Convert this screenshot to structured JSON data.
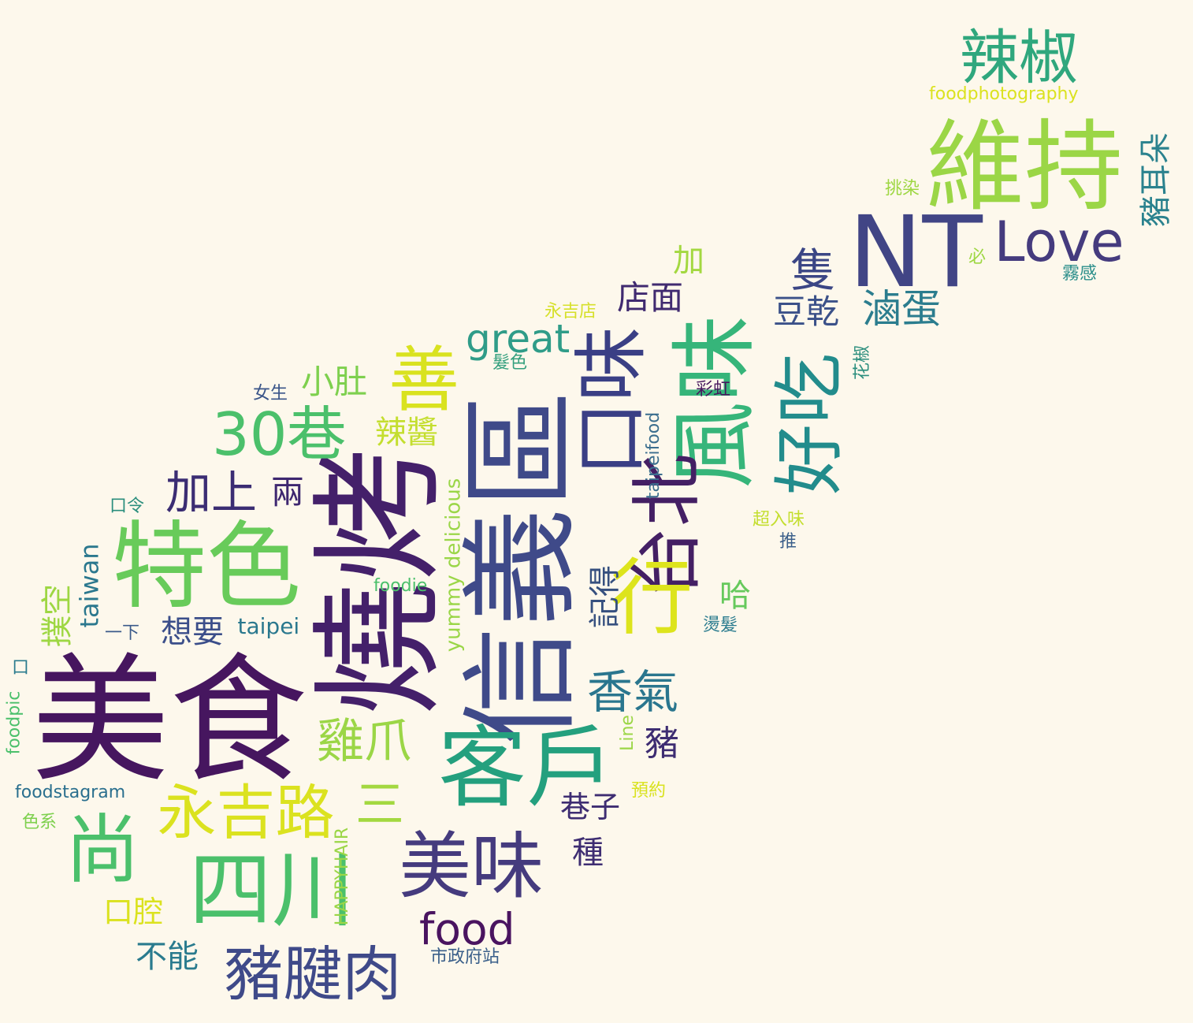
{
  "words": [
    {
      "text": "美食",
      "color": "#46165f",
      "orientation": "horizontal"
    },
    {
      "text": "燒烤",
      "color": "#44206a",
      "orientation": "vertical"
    },
    {
      "text": "信義區",
      "color": "#3f4a89",
      "orientation": "vertical"
    },
    {
      "text": "客戶",
      "color": "#24a07e",
      "orientation": "horizontal"
    },
    {
      "text": "維持",
      "color": "#9bd646",
      "orientation": "horizontal"
    },
    {
      "text": "NT",
      "color": "#414585",
      "orientation": "horizontal"
    },
    {
      "text": "特色",
      "color": "#68cb5a",
      "orientation": "horizontal"
    },
    {
      "text": "四川",
      "color": "#4bc06b",
      "orientation": "horizontal"
    },
    {
      "text": "風味",
      "color": "#36b57a",
      "orientation": "vertical"
    },
    {
      "text": "口味",
      "color": "#3a3f85",
      "orientation": "vertical"
    },
    {
      "text": "台北",
      "color": "#441f64",
      "orientation": "vertical"
    },
    {
      "text": "善",
      "color": "#d9e21f",
      "orientation": "horizontal"
    },
    {
      "text": "好吃",
      "color": "#228c8c",
      "orientation": "vertical"
    },
    {
      "text": "美味",
      "color": "#453b7e",
      "orientation": "horizontal"
    },
    {
      "text": "行",
      "color": "#dde41c",
      "orientation": "horizontal"
    },
    {
      "text": "尚",
      "color": "#4bc06b",
      "orientation": "horizontal"
    },
    {
      "text": "辣椒",
      "color": "#2fa77d",
      "orientation": "horizontal"
    },
    {
      "text": "Love",
      "color": "#453b7e",
      "orientation": "horizontal"
    },
    {
      "text": "豬腱肉",
      "color": "#3f4a89",
      "orientation": "horizontal"
    },
    {
      "text": "永吉路",
      "color": "#dbe21f",
      "orientation": "horizontal"
    },
    {
      "text": "30巷",
      "color": "#4bc06b",
      "orientation": "horizontal"
    },
    {
      "text": "food",
      "color": "#4a1460",
      "orientation": "horizontal"
    },
    {
      "text": "加上",
      "color": "#3b2d73",
      "orientation": "horizontal"
    },
    {
      "text": "香氣",
      "color": "#2a768e",
      "orientation": "horizontal"
    },
    {
      "text": "雞爪",
      "color": "#9bd646",
      "orientation": "horizontal"
    },
    {
      "text": "三",
      "color": "#a3d840",
      "orientation": "horizontal"
    },
    {
      "text": "豬耳朵",
      "color": "#2b828e",
      "orientation": "vertical"
    },
    {
      "text": "隻",
      "color": "#3b4685",
      "orientation": "horizontal"
    },
    {
      "text": "滷蛋",
      "color": "#2b7d8e",
      "orientation": "horizontal"
    },
    {
      "text": "豆乾",
      "color": "#3b5189",
      "orientation": "horizontal"
    },
    {
      "text": "great",
      "color": "#2f9c88",
      "orientation": "horizontal"
    },
    {
      "text": "店面",
      "color": "#402a70",
      "orientation": "horizontal"
    },
    {
      "text": "小肚",
      "color": "#7ed04e",
      "orientation": "horizontal"
    },
    {
      "text": "辣醬",
      "color": "#c4de2f",
      "orientation": "horizontal"
    },
    {
      "text": "兩",
      "color": "#3e2770",
      "orientation": "horizontal"
    },
    {
      "text": "taiwan",
      "color": "#2b788e",
      "orientation": "vertical"
    },
    {
      "text": "yummy delicious",
      "color": "#9ad647",
      "orientation": "vertical"
    },
    {
      "text": "撲空",
      "color": "#9ed743",
      "orientation": "vertical"
    },
    {
      "text": "想要",
      "color": "#3b4e8a",
      "orientation": "horizontal"
    },
    {
      "text": "taipei",
      "color": "#2a788e",
      "orientation": "horizontal"
    },
    {
      "text": "記得",
      "color": "#36507f",
      "orientation": "vertical"
    },
    {
      "text": "哈",
      "color": "#66c95c",
      "orientation": "horizontal"
    },
    {
      "text": "豬",
      "color": "#3e2d72",
      "orientation": "horizontal"
    },
    {
      "text": "巷子",
      "color": "#3e2d72",
      "orientation": "horizontal"
    },
    {
      "text": "種",
      "color": "#3e2d72",
      "orientation": "horizontal"
    },
    {
      "text": "口腔",
      "color": "#dbe21f",
      "orientation": "horizontal"
    },
    {
      "text": "不能",
      "color": "#2a7b8e",
      "orientation": "horizontal"
    },
    {
      "text": "加",
      "color": "#a3d840",
      "orientation": "horizontal"
    },
    {
      "text": "foodphotography",
      "color": "#dbe21f",
      "orientation": "horizontal"
    },
    {
      "text": "挑染",
      "color": "#9ed743",
      "orientation": "horizontal"
    },
    {
      "text": "必",
      "color": "#9ed743",
      "orientation": "horizontal"
    },
    {
      "text": "霧感",
      "color": "#2a8e8a",
      "orientation": "horizontal"
    },
    {
      "text": "永吉店",
      "color": "#d6e02a",
      "orientation": "horizontal"
    },
    {
      "text": "髮色",
      "color": "#34a07e",
      "orientation": "horizontal"
    },
    {
      "text": "花椒",
      "color": "#2b8e7d",
      "orientation": "vertical"
    },
    {
      "text": "女生",
      "color": "#3a5589",
      "orientation": "horizontal"
    },
    {
      "text": "彩虹",
      "color": "#47185e",
      "orientation": "horizontal"
    },
    {
      "text": "taipeifood",
      "color": "#3b6e8e",
      "orientation": "vertical"
    },
    {
      "text": "口令",
      "color": "#2b8e7d",
      "orientation": "horizontal"
    },
    {
      "text": "超入味",
      "color": "#c4de2f",
      "orientation": "horizontal"
    },
    {
      "text": "推",
      "color": "#3b5f8a",
      "orientation": "horizontal"
    },
    {
      "text": "foodie",
      "color": "#4bc06b",
      "orientation": "horizontal"
    },
    {
      "text": "一下",
      "color": "#3b5a8a",
      "orientation": "horizontal"
    },
    {
      "text": "燙髮",
      "color": "#2a7b8e",
      "orientation": "horizontal"
    },
    {
      "text": "口",
      "color": "#2a7b8e",
      "orientation": "horizontal"
    },
    {
      "text": "foodpic",
      "color": "#4bc06b",
      "orientation": "vertical"
    },
    {
      "text": "Line",
      "color": "#9bd646",
      "orientation": "vertical"
    },
    {
      "text": "foodstagram",
      "color": "#2a6f8e",
      "orientation": "horizontal"
    },
    {
      "text": "預約",
      "color": "#d9e21f",
      "orientation": "horizontal"
    },
    {
      "text": "色系",
      "color": "#7ed04e",
      "orientation": "horizontal"
    },
    {
      "text": "HAPPYHAIR",
      "color": "#9bd646",
      "orientation": "vertical"
    },
    {
      "text": "市政府站",
      "color": "#3a5f8a",
      "orientation": "horizontal"
    }
  ]
}
